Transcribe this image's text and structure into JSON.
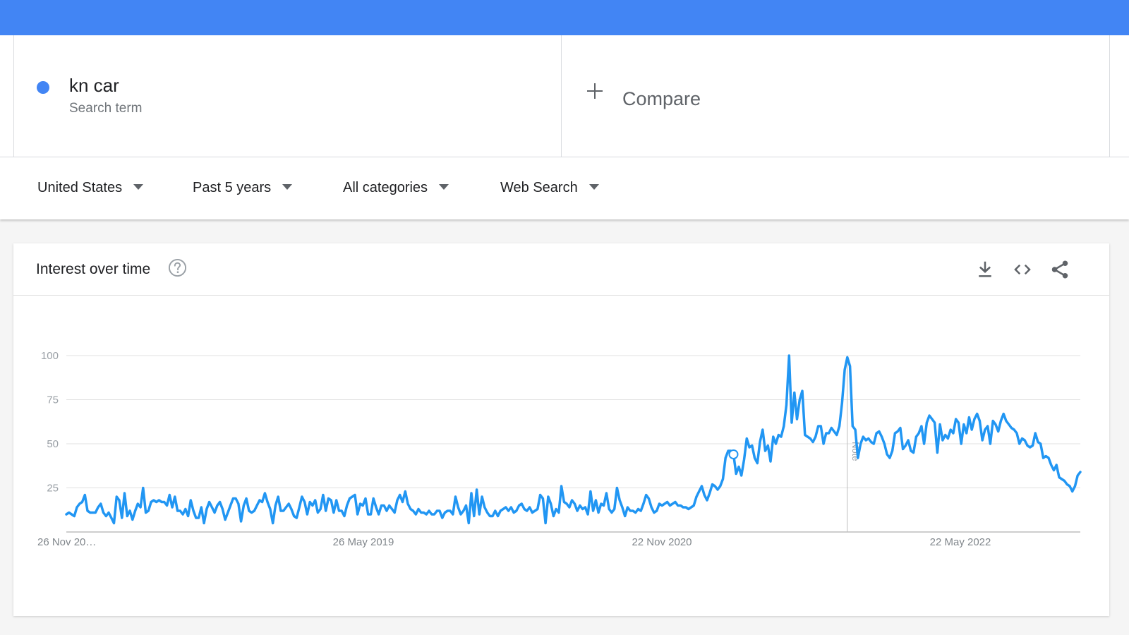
{
  "search_term": {
    "name": "kn car",
    "type_label": "Search term",
    "color": "#4285f4"
  },
  "compare": {
    "label": "Compare"
  },
  "filters": {
    "region": "United States",
    "time_range": "Past 5 years",
    "category": "All categories",
    "search_type": "Web Search"
  },
  "card": {
    "title": "Interest over time",
    "icons": [
      "help-icon",
      "download-icon",
      "embed-icon",
      "share-icon"
    ]
  },
  "colors": {
    "topbar": "#4285f4",
    "series": "#2196f3",
    "gridline": "#e0e0e0"
  },
  "chart_data": {
    "type": "line",
    "y_ticks": [
      "100",
      "75",
      "50",
      "25"
    ],
    "ylim": [
      0,
      100
    ],
    "x_tick_labels": [
      "26 Nov 20…",
      "26 May 2019",
      "22 Nov 2020",
      "22 May 2022"
    ],
    "annotation": "Note",
    "series": [
      {
        "values": [
          10,
          11,
          10,
          9,
          14,
          16,
          17,
          21,
          12,
          11,
          11,
          11,
          14,
          16,
          11,
          9,
          11,
          8,
          5,
          20,
          18,
          8,
          22,
          9,
          12,
          7,
          12,
          16,
          14,
          25,
          11,
          12,
          17,
          18,
          17,
          18,
          17,
          17,
          15,
          21,
          14,
          20,
          12,
          12,
          10,
          13,
          9,
          18,
          12,
          8,
          8,
          14,
          5,
          13,
          17,
          14,
          11,
          15,
          17,
          13,
          7,
          11,
          15,
          19,
          19,
          16,
          6,
          15,
          19,
          12,
          11,
          12,
          15,
          18,
          17,
          22,
          17,
          13,
          5,
          15,
          20,
          12,
          12,
          14,
          16,
          13,
          9,
          8,
          14,
          20,
          17,
          10,
          17,
          15,
          18,
          11,
          13,
          21,
          12,
          19,
          18,
          11,
          18,
          12,
          12,
          9,
          15,
          19,
          20,
          21,
          10,
          16,
          15,
          19,
          10,
          10,
          19,
          14,
          10,
          15,
          15,
          12,
          15,
          13,
          11,
          18,
          21,
          17,
          23,
          16,
          13,
          12,
          10,
          13,
          11,
          11,
          10,
          12,
          10,
          10,
          12,
          12,
          8,
          11,
          12,
          12,
          10,
          20,
          14,
          10,
          12,
          15,
          5,
          22,
          9,
          24,
          10,
          20,
          14,
          11,
          9,
          9,
          12,
          9,
          12,
          13,
          14,
          12,
          14,
          11,
          12,
          15,
          16,
          13,
          12,
          14,
          11,
          12,
          13,
          21,
          19,
          5,
          20,
          16,
          9,
          13,
          11,
          26,
          17,
          16,
          14,
          18,
          16,
          12,
          15,
          13,
          14,
          10,
          23,
          12,
          18,
          11,
          16,
          15,
          22,
          13,
          11,
          13,
          25,
          18,
          14,
          9,
          14,
          12,
          12,
          11,
          13,
          12,
          16,
          21,
          19,
          14,
          11,
          12,
          16,
          15,
          16,
          17,
          15,
          16,
          17,
          15,
          15,
          14,
          14,
          13,
          14,
          15,
          20,
          23,
          26,
          21,
          18,
          22,
          27,
          26,
          24,
          26,
          30,
          42,
          46,
          46,
          44,
          33,
          37,
          32,
          41,
          53,
          48,
          49,
          42,
          39,
          51,
          58,
          46,
          49,
          40,
          54,
          50,
          55,
          54,
          60,
          72,
          100,
          62,
          79,
          64,
          75,
          80,
          55,
          54,
          53,
          51,
          54,
          60,
          60,
          50,
          56,
          56,
          59,
          57,
          55,
          60,
          73,
          92,
          99,
          94,
          60,
          58,
          42,
          50,
          54,
          52,
          53,
          51,
          50,
          56,
          57,
          54,
          50,
          44,
          42,
          46,
          56,
          57,
          59,
          47,
          49,
          52,
          46,
          45,
          54,
          56,
          60,
          50,
          62,
          66,
          64,
          62,
          45,
          61,
          52,
          55,
          53,
          58,
          56,
          64,
          62,
          50,
          61,
          56,
          65,
          58,
          64,
          67,
          63,
          52,
          58,
          60,
          50,
          63,
          61,
          57,
          63,
          67,
          63,
          61,
          59,
          58,
          56,
          50,
          53,
          52,
          49,
          48,
          49,
          56,
          51,
          50,
          42,
          43,
          42,
          38,
          35,
          38,
          31,
          30,
          29,
          27,
          26,
          23,
          26,
          32,
          34
        ]
      }
    ]
  }
}
